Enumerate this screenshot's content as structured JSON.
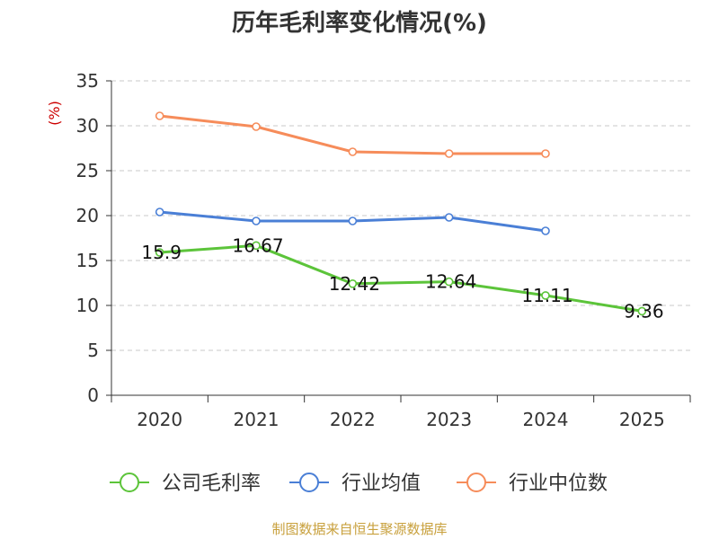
{
  "chart_data": {
    "type": "line",
    "title": "历年毛利率变化情况(%)",
    "ylabel": "(%)",
    "xlabel": "",
    "categories": [
      "2020",
      "2021",
      "2022",
      "2023",
      "2024",
      "2025"
    ],
    "ylim": [
      0,
      35
    ],
    "yticks": [
      0,
      5,
      10,
      15,
      20,
      25,
      30,
      35
    ],
    "grid": true,
    "legend_position": "bottom",
    "series": [
      {
        "name": "公司毛利率",
        "color": "#5cc43a",
        "values": [
          15.9,
          16.67,
          12.42,
          12.64,
          11.11,
          9.36
        ],
        "labels": [
          "15.9",
          "16.67",
          "12.42",
          "12.64",
          "11.11",
          "9.36"
        ]
      },
      {
        "name": "行业均值",
        "color": "#4a7fd6",
        "values": [
          20.4,
          19.4,
          19.4,
          19.8,
          18.3,
          null
        ]
      },
      {
        "name": "行业中位数",
        "color": "#f68c5a",
        "values": [
          31.1,
          29.9,
          27.1,
          26.9,
          26.9,
          null
        ]
      }
    ],
    "source": "制图数据来自恒生聚源数据库"
  }
}
